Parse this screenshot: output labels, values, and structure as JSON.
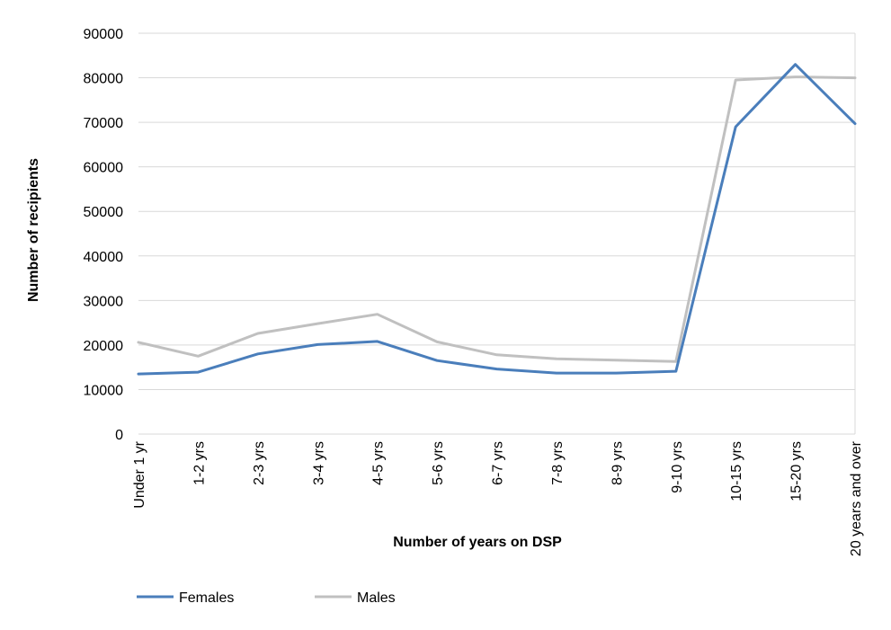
{
  "chart_data": {
    "type": "line",
    "title": "",
    "xlabel": "Number of years on DSP",
    "ylabel": "Number of recipients",
    "categories": [
      "Under 1 yr",
      "1-2 yrs",
      "2-3 yrs",
      "3-4 yrs",
      "4-5 yrs",
      "5-6 yrs",
      "6-7 yrs",
      "7-8 yrs",
      "8-9 yrs",
      "9-10 yrs",
      "10-15 yrs",
      "15-20 yrs",
      "20 years and over"
    ],
    "ylim": [
      0,
      90000
    ],
    "yticks": [
      0,
      10000,
      20000,
      30000,
      40000,
      50000,
      60000,
      70000,
      80000,
      90000
    ],
    "ytick_labels": [
      "0",
      "10000",
      "20000",
      "30000",
      "40000",
      "50000",
      "60000",
      "70000",
      "80000",
      "90000"
    ],
    "grid": true,
    "legend_position": "bottom-left",
    "series": [
      {
        "name": "Females",
        "color": "#4a7ebb",
        "values": [
          13500,
          13900,
          18000,
          20100,
          20800,
          16500,
          14600,
          13700,
          13700,
          14100,
          69000,
          83000,
          69700
        ]
      },
      {
        "name": "Males",
        "color": "#c0c0c0",
        "values": [
          20600,
          17500,
          22600,
          24800,
          26900,
          20700,
          17800,
          16900,
          16600,
          16300,
          79500,
          80200,
          80000
        ]
      }
    ]
  }
}
